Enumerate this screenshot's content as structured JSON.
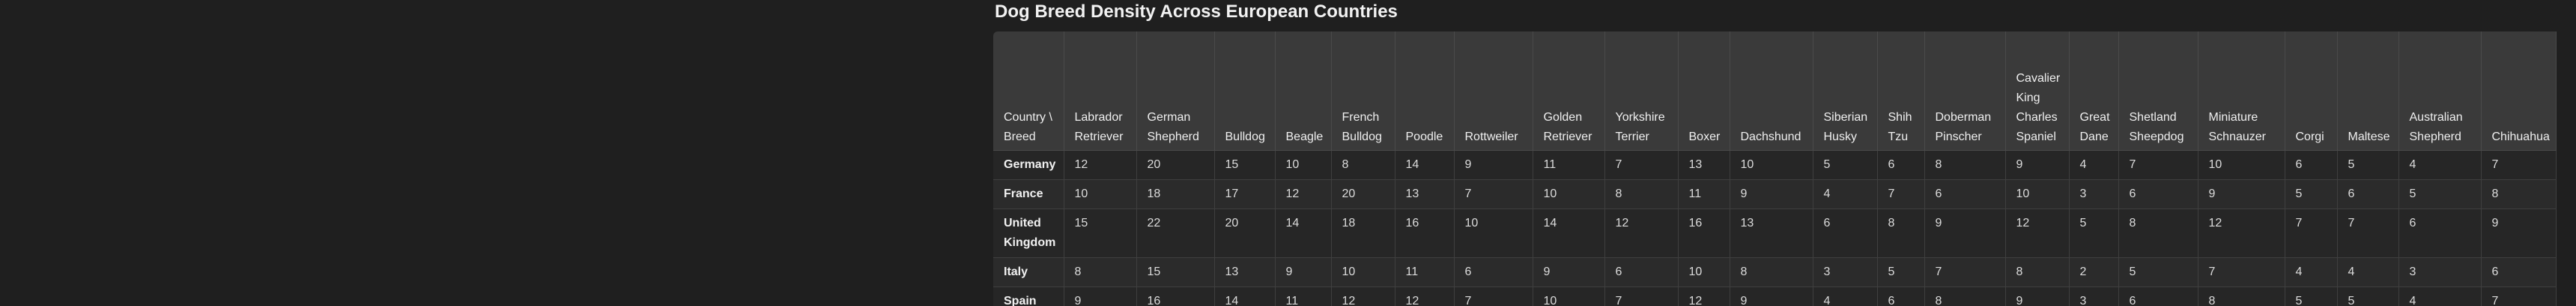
{
  "title": "Dog Breed Density Across European Countries",
  "table": {
    "corner_header": "Country \\ Breed",
    "columns": [
      "Labrador Retriever",
      "German Shepherd",
      "Bulldog",
      "Beagle",
      "French Bulldog",
      "Poodle",
      "Rottweiler",
      "Golden Retriever",
      "Yorkshire Terrier",
      "Boxer",
      "Dachshund",
      "Siberian Husky",
      "Shih Tzu",
      "Doberman Pinscher",
      "Cavalier King Charles Spaniel",
      "Great Dane",
      "Shetland Sheepdog",
      "Miniature Schnauzer",
      "Corgi",
      "Maltese",
      "Australian Shepherd",
      "Chihuahua"
    ],
    "rows": [
      {
        "country": "Germany",
        "values": [
          "12",
          "20",
          "15",
          "10",
          "8",
          "14",
          "9",
          "11",
          "7",
          "13",
          "10",
          "5",
          "6",
          "8",
          "9",
          "4",
          "7",
          "10",
          "6",
          "5",
          "4",
          "7"
        ]
      },
      {
        "country": "France",
        "values": [
          "10",
          "18",
          "17",
          "12",
          "20",
          "13",
          "7",
          "10",
          "8",
          "11",
          "9",
          "4",
          "7",
          "6",
          "10",
          "3",
          "6",
          "9",
          "5",
          "6",
          "5",
          "8"
        ]
      },
      {
        "country": "United Kingdom",
        "values": [
          "15",
          "22",
          "20",
          "14",
          "18",
          "16",
          "10",
          "14",
          "12",
          "16",
          "13",
          "6",
          "8",
          "9",
          "12",
          "5",
          "8",
          "12",
          "7",
          "7",
          "6",
          "9"
        ]
      },
      {
        "country": "Italy",
        "values": [
          "8",
          "15",
          "13",
          "9",
          "10",
          "11",
          "6",
          "9",
          "6",
          "10",
          "8",
          "3",
          "5",
          "7",
          "8",
          "2",
          "5",
          "7",
          "4",
          "4",
          "3",
          "6"
        ]
      },
      {
        "country": "Spain",
        "values": [
          "9",
          "16",
          "14",
          "11",
          "12",
          "12",
          "7",
          "10",
          "7",
          "12",
          "9",
          "4",
          "6",
          "8",
          "9",
          "3",
          "6",
          "8",
          "5",
          "5",
          "4",
          "7"
        ]
      }
    ]
  }
}
